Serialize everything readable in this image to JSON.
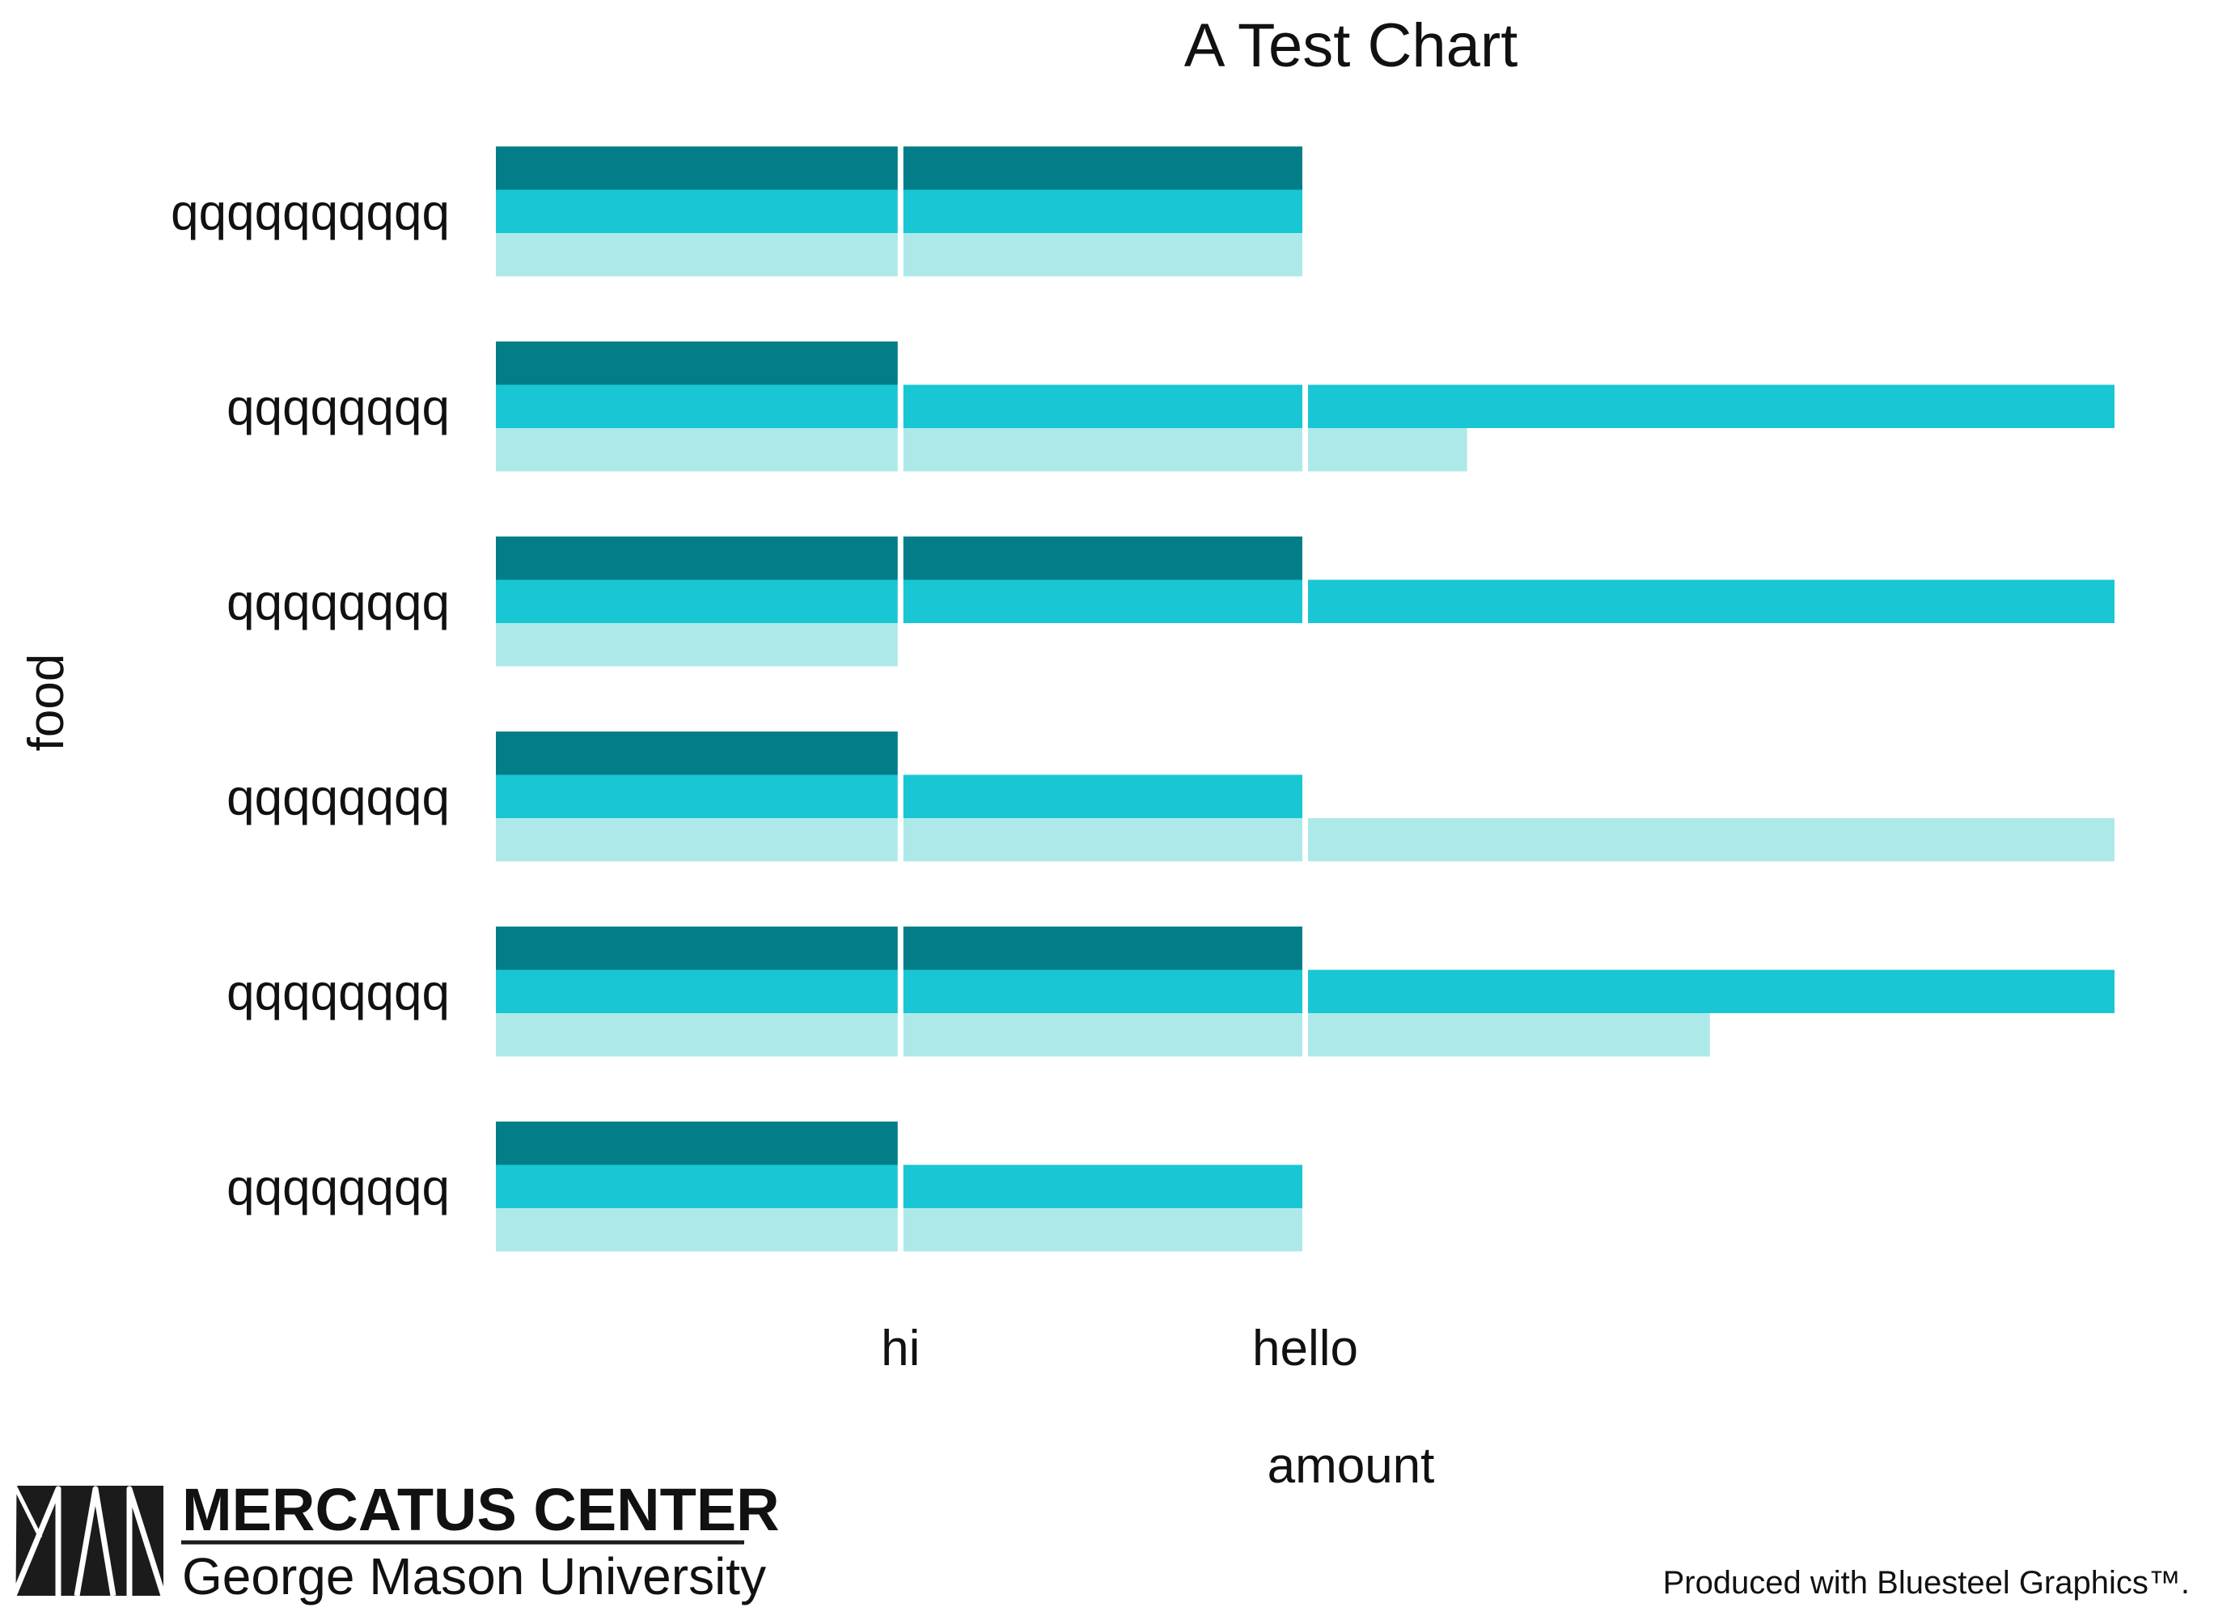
{
  "chart_data": {
    "type": "bar",
    "orientation": "horizontal",
    "layout": "grouped",
    "title": "A Test Chart",
    "xlabel": "amount",
    "ylabel": "food",
    "categories": [
      "qqqqqqqqqq",
      "qqqqqqqq",
      "qqqqqqqq",
      "qqqqqqqq",
      "qqqqqqqq",
      "qqqqqqqq"
    ],
    "x_tick_labels": [
      "hi",
      "hello"
    ],
    "x_tick_values": [
      1,
      2
    ],
    "xlim": [
      0,
      4
    ],
    "grid": false,
    "legend": "none",
    "series": [
      {
        "values": [
          2,
          1,
          2,
          1,
          2,
          1
        ],
        "color": "#037E88"
      },
      {
        "values": [
          2,
          4,
          4,
          2,
          4,
          2
        ],
        "color": "#19C6D3"
      },
      {
        "values": [
          2,
          2.4,
          1,
          4,
          3,
          2
        ],
        "color": "#AEE9E9"
      }
    ]
  },
  "footer": {
    "logo_title": "MERCATUS CENTER",
    "logo_subtitle": "George Mason University",
    "credit": "Produced with Bluesteel Graphics™."
  }
}
